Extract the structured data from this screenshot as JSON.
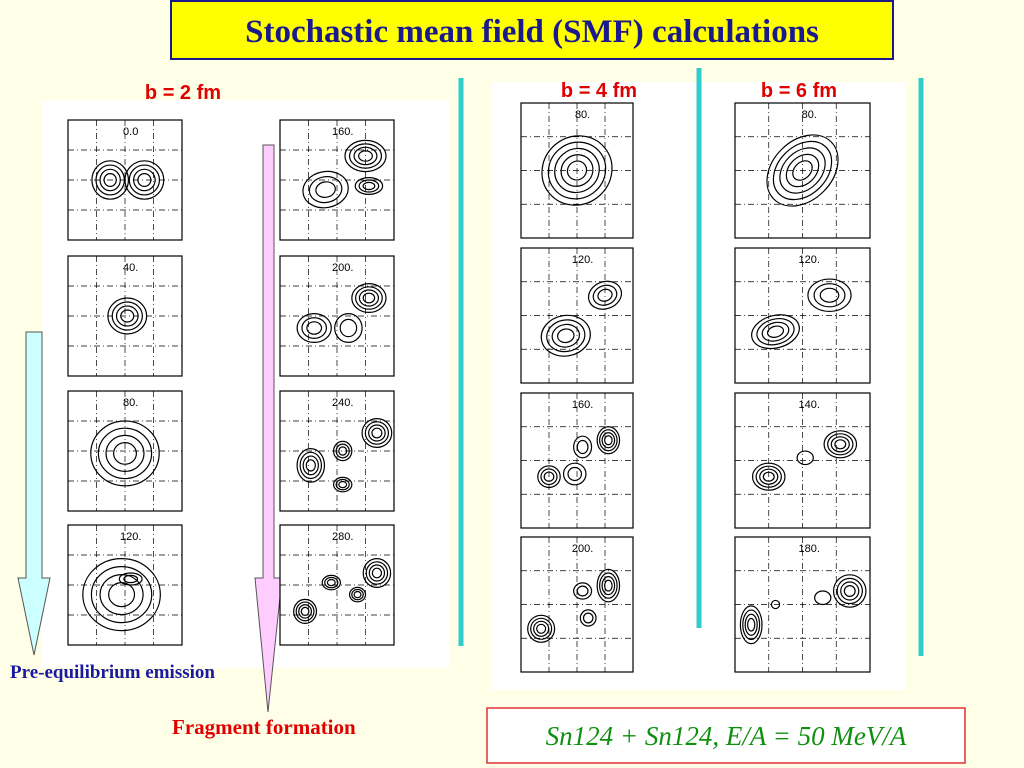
{
  "title": "Stochastic mean field  (SMF) calculations",
  "groups": [
    {
      "label": "b = 2 fm",
      "panels": [
        "0.0",
        "40.",
        "80.",
        "120.",
        "160.",
        "200.",
        "240.",
        "280."
      ]
    },
    {
      "label": "b = 4 fm",
      "panels": [
        "80.",
        "120.",
        "160.",
        "200."
      ]
    },
    {
      "label": "b = 6 fm",
      "panels": [
        "80.",
        "120.",
        "140.",
        "180."
      ]
    }
  ],
  "annotations": {
    "pre_equilibrium": "Pre-equilibrium emission",
    "fragment_formation": "Fragment formation",
    "reaction": "Sn124 + Sn124, E/A = 50 MeV/A"
  }
}
